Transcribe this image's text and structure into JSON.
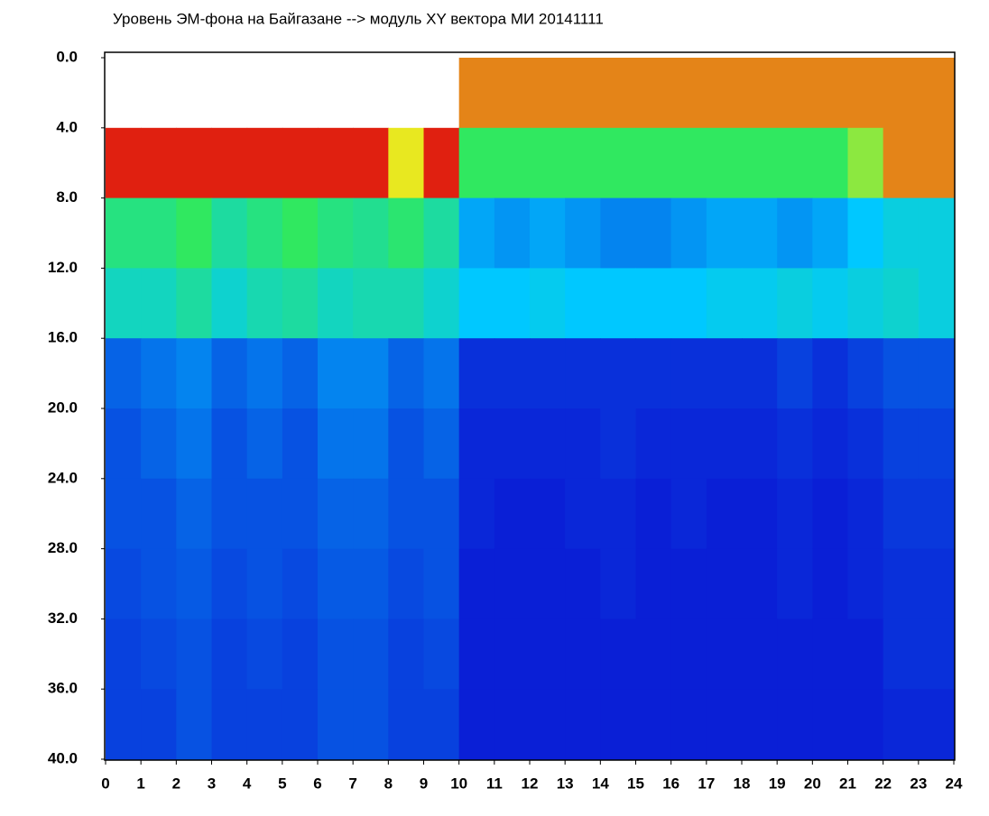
{
  "chart_data": {
    "type": "heatmap",
    "title": "Уровень ЭМ-фона на Байгазане  -->  модуль XY вектора МИ  20141111",
    "xbins": [
      0,
      1,
      2,
      3,
      4,
      5,
      6,
      7,
      8,
      9,
      10,
      11,
      12,
      13,
      14,
      15,
      16,
      17,
      18,
      19,
      20,
      21,
      22,
      23,
      24
    ],
    "ybins": [
      0,
      4,
      8,
      12,
      16,
      20,
      24,
      28,
      32,
      36,
      40
    ],
    "colorscale": [
      "#ffffff",
      "#0a1fd6",
      "#00c8ff",
      "#30e860",
      "#e8e820",
      "#e02010"
    ],
    "z": [
      [
        0,
        0,
        0,
        0,
        0,
        0,
        0,
        0,
        0,
        0,
        4.5,
        4.5,
        4.5,
        4.5,
        4.5,
        4.5,
        4.5,
        4.5,
        4.5,
        4.5,
        4.5,
        4.5,
        4.5,
        4.5
      ],
      [
        5,
        5,
        5,
        5,
        5,
        5,
        5,
        5,
        4,
        5,
        3,
        3,
        3,
        3,
        3,
        3,
        3,
        3,
        3,
        3,
        3,
        3.5,
        4.5,
        4.5
      ],
      [
        2.8,
        2.8,
        3,
        2.6,
        2.8,
        3,
        2.8,
        2.7,
        2.9,
        2.6,
        1.8,
        1.7,
        1.8,
        1.7,
        1.6,
        1.6,
        1.7,
        1.8,
        1.8,
        1.7,
        1.8,
        2,
        2.2,
        2.2
      ],
      [
        2.4,
        2.4,
        2.6,
        2.3,
        2.5,
        2.6,
        2.4,
        2.5,
        2.5,
        2.3,
        2,
        2,
        2.1,
        2,
        2,
        2,
        2,
        2.1,
        2.1,
        2.2,
        2.1,
        2.2,
        2.3,
        2.2
      ],
      [
        1.4,
        1.5,
        1.6,
        1.4,
        1.5,
        1.4,
        1.6,
        1.6,
        1.4,
        1.5,
        1.1,
        1.1,
        1.1,
        1.1,
        1.1,
        1.1,
        1.1,
        1.1,
        1.1,
        1.2,
        1.1,
        1.2,
        1.3,
        1.3
      ],
      [
        1.3,
        1.4,
        1.5,
        1.3,
        1.4,
        1.3,
        1.5,
        1.5,
        1.3,
        1.4,
        1.05,
        1.05,
        1.05,
        1.05,
        1.1,
        1.05,
        1.05,
        1.05,
        1.05,
        1.1,
        1.05,
        1.1,
        1.2,
        1.2
      ],
      [
        1.3,
        1.3,
        1.4,
        1.3,
        1.3,
        1.3,
        1.4,
        1.4,
        1.3,
        1.3,
        1.05,
        1,
        1,
        1.05,
        1.05,
        1,
        1.05,
        1,
        1,
        1.05,
        1,
        1.05,
        1.15,
        1.15
      ],
      [
        1.25,
        1.3,
        1.35,
        1.25,
        1.3,
        1.25,
        1.35,
        1.35,
        1.25,
        1.3,
        1,
        1,
        1,
        1,
        1.05,
        1,
        1,
        1,
        1,
        1.05,
        1,
        1.05,
        1.1,
        1.1
      ],
      [
        1.2,
        1.25,
        1.3,
        1.2,
        1.25,
        1.2,
        1.3,
        1.3,
        1.2,
        1.25,
        1,
        1,
        1,
        1,
        1,
        1,
        1,
        1,
        1,
        1,
        1,
        1,
        1.1,
        1.1
      ],
      [
        1.2,
        1.2,
        1.3,
        1.2,
        1.2,
        1.2,
        1.3,
        1.3,
        1.2,
        1.2,
        1,
        1,
        1,
        1,
        1,
        1,
        1,
        1,
        1,
        1,
        1,
        1,
        1.05,
        1.05
      ]
    ],
    "xlim": [
      0,
      24
    ],
    "ylim": [
      0,
      40
    ],
    "xticks": [
      0,
      1,
      2,
      3,
      4,
      5,
      6,
      7,
      8,
      9,
      10,
      11,
      12,
      13,
      14,
      15,
      16,
      17,
      18,
      19,
      20,
      21,
      22,
      23,
      24
    ],
    "yticks": [
      {
        "value": 0,
        "label": "0.0"
      },
      {
        "value": 4,
        "label": "4.0"
      },
      {
        "value": 8,
        "label": "8.0"
      },
      {
        "value": 12,
        "label": "12.0"
      },
      {
        "value": 16,
        "label": "16.0"
      },
      {
        "value": 20,
        "label": "20.0"
      },
      {
        "value": 24,
        "label": "24.0"
      },
      {
        "value": 28,
        "label": "28.0"
      },
      {
        "value": 32,
        "label": "32.0"
      },
      {
        "value": 36,
        "label": "36.0"
      },
      {
        "value": 40,
        "label": "40.0"
      }
    ],
    "y_inverted": true
  }
}
